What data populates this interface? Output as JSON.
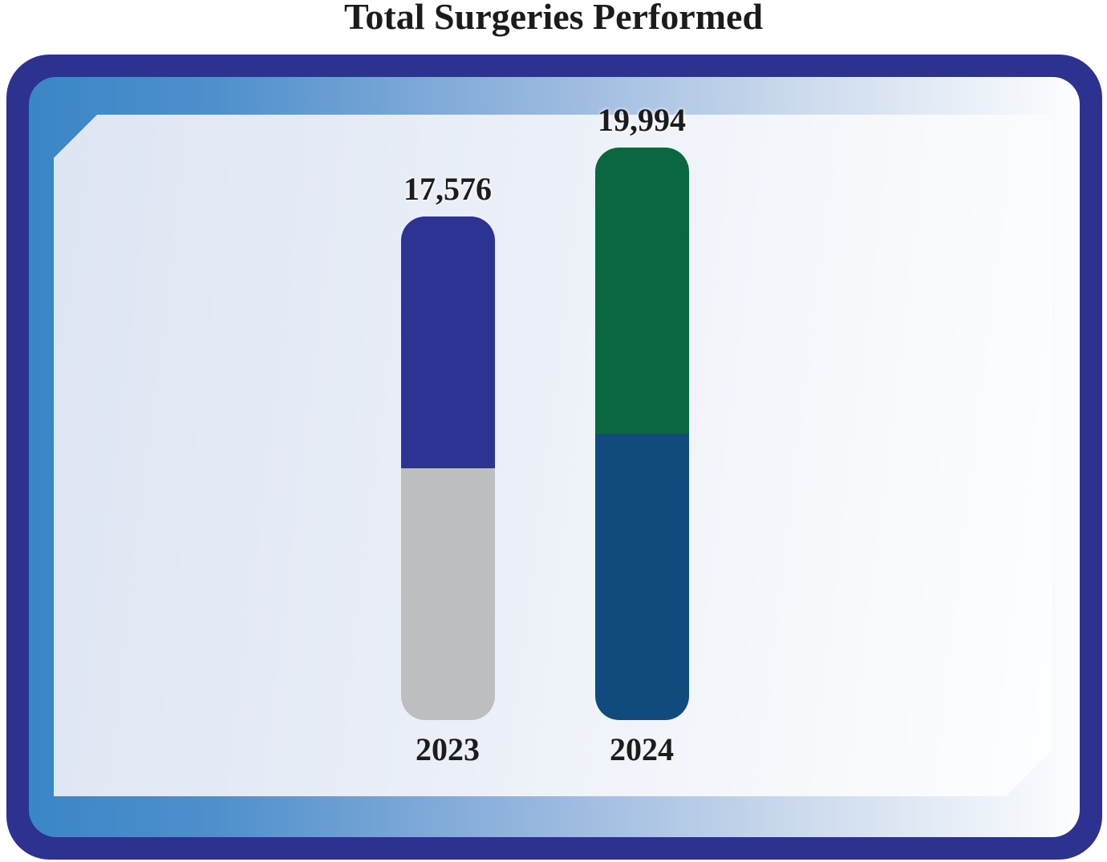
{
  "page": {
    "title": "Total Surgeries Performed"
  },
  "theme": {
    "frame_border_color": "#2d3190",
    "backing_gradient_start": "#3a86c7",
    "backing_gradient_end": "#fdfeff",
    "panel_gradient_start": "#dee5f3",
    "panel_gradient_end": "#fdfeff",
    "title_text_color": "#1b1b1b",
    "label_text_color": "#1c1c1c"
  },
  "chart_data": {
    "type": "bar",
    "subtype": "stacked",
    "title": "Total Surgeries Performed",
    "categories": [
      "2023",
      "2024"
    ],
    "totals": [
      17576,
      19994
    ],
    "total_labels": [
      "17,576",
      "19,994"
    ],
    "bars": [
      {
        "year": "2023",
        "value": 17576,
        "label": "17,576",
        "segments": [
          {
            "position": "top",
            "color": "#2d3392",
            "fraction": 0.5,
            "est_value": 8788
          },
          {
            "position": "bottom",
            "color": "#bcbec0",
            "fraction": 0.5,
            "est_value": 8788
          }
        ]
      },
      {
        "year": "2024",
        "value": 19994,
        "label": "19,994",
        "segments": [
          {
            "position": "top",
            "color": "#0b6741",
            "fraction": 0.5,
            "est_value": 9997
          },
          {
            "position": "bottom",
            "color": "#114b7e",
            "fraction": 0.5,
            "est_value": 9997
          }
        ]
      }
    ],
    "xlabel": "",
    "ylabel": "",
    "axes": "none",
    "gridlines": false,
    "legend": "none"
  }
}
